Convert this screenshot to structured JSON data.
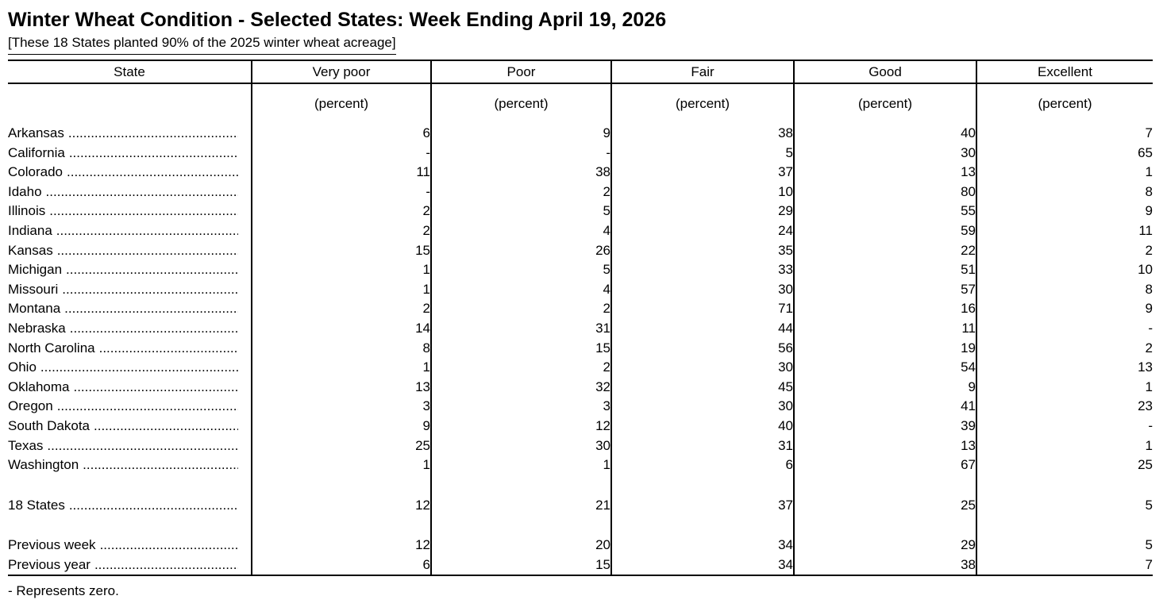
{
  "colors": {
    "text": "#000000",
    "background": "#ffffff"
  },
  "title": "Winter Wheat Condition - Selected States: Week Ending April 19, 2026",
  "subtitle": "[These 18 States planted 90% of the 2025 winter wheat acreage]",
  "footnote": "- Represents zero.",
  "table": {
    "columns": [
      "State",
      "Very poor",
      "Poor",
      "Fair",
      "Good",
      "Excellent"
    ],
    "unit_label": "(percent)",
    "dash_meaning": "Represents zero",
    "state_rows": [
      {
        "state": "Arkansas",
        "values": [
          "6",
          "9",
          "38",
          "40",
          "7"
        ]
      },
      {
        "state": "California",
        "values": [
          "-",
          "-",
          "5",
          "30",
          "65"
        ]
      },
      {
        "state": "Colorado",
        "values": [
          "11",
          "38",
          "37",
          "13",
          "1"
        ]
      },
      {
        "state": "Idaho",
        "values": [
          "-",
          "2",
          "10",
          "80",
          "8"
        ]
      },
      {
        "state": "Illinois",
        "values": [
          "2",
          "5",
          "29",
          "55",
          "9"
        ]
      },
      {
        "state": "Indiana",
        "values": [
          "2",
          "4",
          "24",
          "59",
          "11"
        ]
      },
      {
        "state": "Kansas",
        "values": [
          "15",
          "26",
          "35",
          "22",
          "2"
        ]
      },
      {
        "state": "Michigan",
        "values": [
          "1",
          "5",
          "33",
          "51",
          "10"
        ]
      },
      {
        "state": "Missouri",
        "values": [
          "1",
          "4",
          "30",
          "57",
          "8"
        ]
      },
      {
        "state": "Montana",
        "values": [
          "2",
          "2",
          "71",
          "16",
          "9"
        ]
      },
      {
        "state": "Nebraska",
        "values": [
          "14",
          "31",
          "44",
          "11",
          "-"
        ]
      },
      {
        "state": "North Carolina",
        "values": [
          "8",
          "15",
          "56",
          "19",
          "2"
        ]
      },
      {
        "state": "Ohio",
        "values": [
          "1",
          "2",
          "30",
          "54",
          "13"
        ]
      },
      {
        "state": "Oklahoma",
        "values": [
          "13",
          "32",
          "45",
          "9",
          "1"
        ]
      },
      {
        "state": "Oregon",
        "values": [
          "3",
          "3",
          "30",
          "41",
          "23"
        ]
      },
      {
        "state": "South Dakota",
        "values": [
          "9",
          "12",
          "40",
          "39",
          "-"
        ]
      },
      {
        "state": "Texas",
        "values": [
          "25",
          "30",
          "31",
          "13",
          "1"
        ]
      },
      {
        "state": "Washington",
        "values": [
          "1",
          "1",
          "6",
          "67",
          "25"
        ]
      }
    ],
    "total_row": {
      "state": "18 States",
      "values": [
        "12",
        "21",
        "37",
        "25",
        "5"
      ]
    },
    "previous_rows": [
      {
        "state": "Previous week",
        "values": [
          "12",
          "20",
          "34",
          "29",
          "5"
        ]
      },
      {
        "state": "Previous year",
        "values": [
          "6",
          "15",
          "34",
          "38",
          "7"
        ]
      }
    ]
  }
}
